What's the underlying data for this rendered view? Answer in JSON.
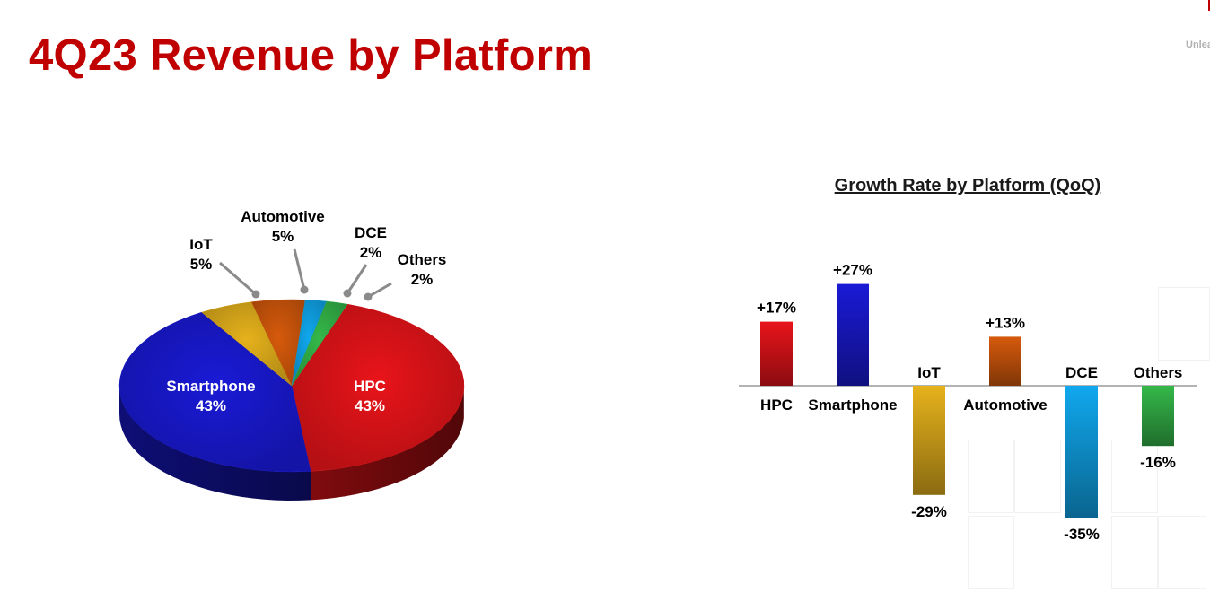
{
  "header": {
    "title": "4Q23 Revenue by Platform",
    "corner_text": "Unleash"
  },
  "colors": {
    "title": "#c00000",
    "hpc": "#e8141a",
    "smartphone": "#1a1ad6",
    "iot": "#e6b21c",
    "automotive": "#d65a0c",
    "dce": "#10a8ee",
    "others": "#35b84a"
  },
  "chart_data": [
    {
      "type": "pie",
      "title": "",
      "slices": [
        {
          "label": "HPC",
          "value": 43,
          "display": "43%"
        },
        {
          "label": "Smartphone",
          "value": 43,
          "display": "43%"
        },
        {
          "label": "IoT",
          "value": 5,
          "display": "5%"
        },
        {
          "label": "Automotive",
          "value": 5,
          "display": "5%"
        },
        {
          "label": "DCE",
          "value": 2,
          "display": "2%"
        },
        {
          "label": "Others",
          "value": 2,
          "display": "2%"
        }
      ]
    },
    {
      "type": "bar",
      "title": "Growth Rate by Platform (QoQ)",
      "categories": [
        "HPC",
        "Smartphone",
        "IoT",
        "Automotive",
        "DCE",
        "Others"
      ],
      "values": [
        17,
        27,
        -29,
        13,
        -35,
        -16
      ],
      "value_labels": [
        "+17%",
        "+27%",
        "-29%",
        "+13%",
        "-35%",
        "-16%"
      ],
      "ylim": [
        -40,
        30
      ],
      "grid": false
    }
  ]
}
